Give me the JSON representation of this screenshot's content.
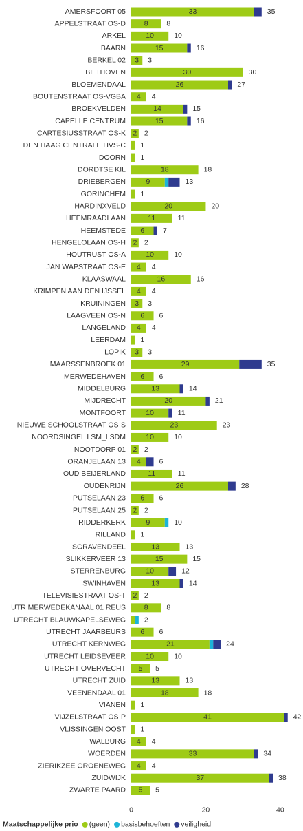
{
  "chart_data": {
    "type": "stacked-bar-horizontal",
    "categories": [
      "AMERSFOORT 05",
      "APPELSTRAAT OS-D",
      "ARKEL",
      "BAARN",
      "BERKEL 02",
      "BILTHOVEN",
      "BLOEMENDAAL",
      "BOUTENSTRAAT OS-VGBA",
      "BROEKVELDEN",
      "CAPELLE CENTRUM",
      "CARTESIUSSTRAAT OS-K",
      "DEN HAAG CENTRALE HVS-C",
      "DOORN",
      "DORDTSE KIL",
      "DRIEBERGEN",
      "GORINCHEM",
      "HARDINXVELD",
      "HEEMRAADLAAN",
      "HEEMSTEDE",
      "HENGELOLAAN OS-H",
      "HOUTRUST OS-A",
      "JAN WAPSTRAAT OS-E",
      "KLAASWAAL",
      "KRIMPEN AAN DEN IJSSEL",
      "KRUININGEN",
      "LAAGVEEN OS-N",
      "LANGELAND",
      "LEERDAM",
      "LOPIK",
      "MAARSSENBROEK 01",
      "MERWEDEHAVEN",
      "MIDDELBURG",
      "MIJDRECHT",
      "MONTFOORT",
      "NIEUWE SCHOOLSTRAAT OS-S",
      "NOORDSINGEL LSM_LSDM",
      "NOOTDORP 01",
      "ORANJELAAN 13",
      "OUD BEIJERLAND",
      "OUDENRIJN",
      "PUTSELAAN 23",
      "PUTSELAAN 25",
      "RIDDERKERK",
      "RILLAND",
      "SGRAVENDEEL",
      "SLIKKERVEER 13",
      "STERRENBURG",
      "SWINHAVEN",
      "TELEVISIESTRAAT OS-T",
      "UTR MERWEDEKANAAL 01 REUS",
      "UTRECHT BLAUWKAPELSEWEG",
      "UTRECHT JAARBEURS",
      "UTRECHT KERNWEG",
      "UTRECHT LEIDSEVEER",
      "UTRECHT OVERVECHT",
      "UTRECHT ZUID",
      "VEENENDAAL 01",
      "VIANEN",
      "VIJZELSTRAAT OS-P",
      "VLISSINGEN OOST",
      "WALBURG",
      "WOERDEN",
      "ZIERIKZEE GROENEWEG",
      "ZUIDWIJK",
      "ZWARTE PAARD"
    ],
    "series": [
      {
        "name": "(geen)",
        "color": "#9ecb16",
        "values": [
          33,
          8,
          10,
          15,
          3,
          30,
          26,
          4,
          14,
          15,
          2,
          1,
          1,
          18,
          9,
          1,
          20,
          11,
          6,
          2,
          10,
          4,
          16,
          4,
          3,
          6,
          4,
          1,
          3,
          29,
          6,
          13,
          20,
          10,
          23,
          10,
          2,
          4,
          11,
          26,
          6,
          2,
          9,
          1,
          13,
          15,
          10,
          13,
          2,
          8,
          1,
          6,
          21,
          10,
          5,
          13,
          18,
          1,
          41,
          1,
          4,
          33,
          4,
          37,
          5
        ]
      },
      {
        "name": "basisbehoeften",
        "color": "#1db4d8",
        "values": [
          0,
          0,
          0,
          0,
          0,
          0,
          0,
          0,
          0,
          0,
          0,
          0,
          0,
          0,
          1,
          0,
          0,
          0,
          0,
          0,
          0,
          0,
          0,
          0,
          0,
          0,
          0,
          0,
          0,
          0,
          0,
          0,
          0,
          0,
          0,
          0,
          0,
          0,
          0,
          0,
          0,
          0,
          1,
          0,
          0,
          0,
          0,
          0,
          0,
          0,
          1,
          0,
          1,
          0,
          0,
          0,
          0,
          0,
          0,
          0,
          0,
          0,
          0,
          0,
          0
        ]
      },
      {
        "name": "veiligheid",
        "color": "#2f3b8f",
        "values": [
          2,
          0,
          0,
          1,
          0,
          0,
          1,
          0,
          1,
          1,
          0,
          0,
          0,
          0,
          3,
          0,
          0,
          0,
          1,
          0,
          0,
          0,
          0,
          0,
          0,
          0,
          0,
          0,
          0,
          6,
          0,
          1,
          1,
          1,
          0,
          0,
          0,
          2,
          0,
          2,
          0,
          0,
          0,
          0,
          0,
          0,
          2,
          1,
          0,
          0,
          0,
          0,
          2,
          0,
          0,
          0,
          0,
          0,
          1,
          0,
          0,
          1,
          0,
          1,
          0
        ]
      }
    ],
    "totals": [
      35,
      8,
      10,
      16,
      3,
      30,
      27,
      4,
      15,
      16,
      2,
      1,
      1,
      18,
      13,
      1,
      20,
      11,
      7,
      2,
      10,
      4,
      16,
      4,
      3,
      6,
      4,
      1,
      3,
      35,
      6,
      14,
      21,
      11,
      23,
      10,
      2,
      6,
      11,
      28,
      6,
      2,
      10,
      1,
      13,
      15,
      12,
      14,
      2,
      8,
      2,
      6,
      24,
      10,
      5,
      13,
      18,
      1,
      42,
      1,
      4,
      34,
      4,
      38,
      5
    ],
    "xlim": [
      0,
      45
    ],
    "xticks": [
      0,
      20,
      40
    ],
    "legend_title": "Maatschappelijke prio",
    "legend": "bottom-left"
  }
}
